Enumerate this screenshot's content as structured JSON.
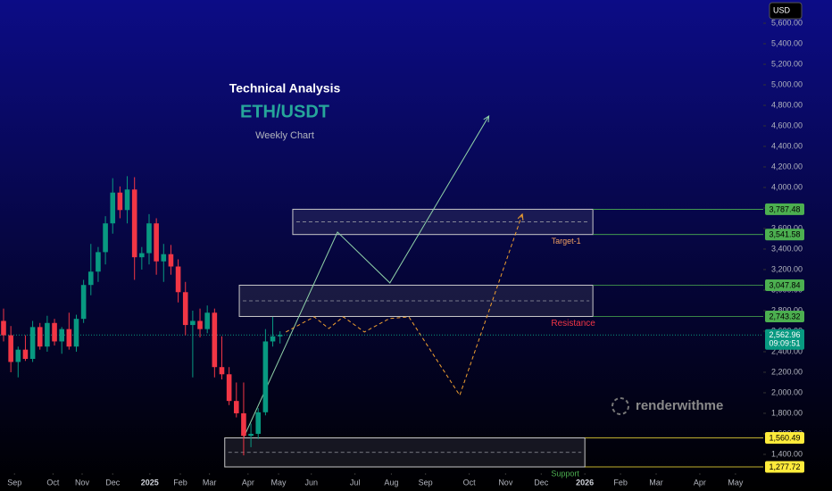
{
  "chart_data": {
    "type": "candlestick",
    "title": "Technical Analysis",
    "symbol": "ETH/USDT",
    "subtitle": "Weekly Chart",
    "currency": "USD",
    "watermark": "renderwithme",
    "colors": {
      "up": "#089981",
      "down": "#f23645"
    },
    "x": [
      0,
      1,
      2,
      3,
      4,
      5,
      6,
      7,
      8,
      9,
      10,
      11,
      12,
      13,
      14,
      15,
      16,
      17,
      18,
      19,
      20,
      21,
      22,
      23,
      24,
      25,
      26,
      27,
      28,
      29,
      30,
      31,
      32,
      33,
      34,
      35,
      36,
      37,
      38
    ],
    "open": [
      2700,
      2560,
      2300,
      2420,
      2330,
      2640,
      2450,
      2680,
      2500,
      2620,
      2450,
      2720,
      3050,
      3180,
      3370,
      3650,
      3950,
      3780,
      3980,
      3320,
      3360,
      3650,
      3280,
      3350,
      3230,
      2980,
      2660,
      2700,
      2620,
      2780,
      2250,
      2180,
      1920,
      1800,
      1580,
      1600,
      1810,
      2500,
      2550
    ],
    "high": [
      2820,
      2650,
      2450,
      2560,
      2700,
      2680,
      2750,
      2720,
      2640,
      2780,
      2760,
      3100,
      3450,
      3420,
      3720,
      4090,
      4010,
      4110,
      4100,
      3420,
      3740,
      3700,
      3450,
      3440,
      3300,
      3080,
      2800,
      2820,
      2850,
      2820,
      2550,
      2250,
      2100,
      2100,
      1700,
      1850,
      2620,
      2740,
      2600
    ],
    "low": [
      2500,
      2200,
      2150,
      2310,
      2300,
      2420,
      2400,
      2460,
      2380,
      2420,
      2400,
      2680,
      2950,
      3080,
      3250,
      3550,
      3700,
      3650,
      3100,
      3200,
      3250,
      3150,
      3080,
      3150,
      2880,
      2560,
      2150,
      2540,
      2580,
      2150,
      2130,
      1880,
      1760,
      1390,
      1470,
      1550,
      1780,
      2450,
      2480
    ],
    "close": [
      2560,
      2300,
      2420,
      2330,
      2640,
      2450,
      2680,
      2500,
      2620,
      2450,
      2720,
      3050,
      3180,
      3370,
      3650,
      3950,
      3780,
      3980,
      3320,
      3360,
      3650,
      3280,
      3350,
      3230,
      2980,
      2660,
      2700,
      2620,
      2780,
      2250,
      2180,
      1920,
      1800,
      1580,
      1600,
      1810,
      2500,
      2550,
      2563
    ],
    "xlim": [
      -0.49,
      104.42
    ],
    "xticks": [
      {
        "value": 1.5,
        "label": "Sep"
      },
      {
        "value": 6.8,
        "label": "Oct"
      },
      {
        "value": 10.8,
        "label": "Nov"
      },
      {
        "value": 15,
        "label": "Dec"
      },
      {
        "value": 20.1,
        "label": "2025"
      },
      {
        "value": 24.3,
        "label": "Feb"
      },
      {
        "value": 28.3,
        "label": "Mar"
      },
      {
        "value": 33.6,
        "label": "Apr"
      },
      {
        "value": 37.8,
        "label": "May"
      },
      {
        "value": 42.3,
        "label": "Jun"
      },
      {
        "value": 48.3,
        "label": "Jul"
      },
      {
        "value": 53.3,
        "label": "Aug"
      },
      {
        "value": 58,
        "label": "Sep"
      },
      {
        "value": 64,
        "label": "Oct"
      },
      {
        "value": 69,
        "label": "Nov"
      },
      {
        "value": 73.9,
        "label": "Dec"
      },
      {
        "value": 79.9,
        "label": "2026"
      },
      {
        "value": 84.8,
        "label": "Feb"
      },
      {
        "value": 89.7,
        "label": "Mar"
      },
      {
        "value": 95.7,
        "label": "Apr"
      },
      {
        "value": 100.6,
        "label": "May"
      }
    ],
    "ylim": [
      1217,
      5826
    ],
    "yticks": [
      {
        "value": 1400,
        "label": "1,400.00"
      },
      {
        "value": 1600,
        "label": "1,600.00"
      },
      {
        "value": 1800,
        "label": "1,800.00"
      },
      {
        "value": 2000,
        "label": "2,000.00"
      },
      {
        "value": 2200,
        "label": "2,200.00"
      },
      {
        "value": 2400,
        "label": "2,400.00"
      },
      {
        "value": 2600,
        "label": "2,600.00"
      },
      {
        "value": 2800,
        "label": "2,800.00"
      },
      {
        "value": 3000,
        "label": "3,000.00"
      },
      {
        "value": 3200,
        "label": "3,200.00"
      },
      {
        "value": 3400,
        "label": "3,400.00"
      },
      {
        "value": 3600,
        "label": "3,600.00"
      },
      {
        "value": 3800,
        "label": "3,800.00"
      },
      {
        "value": 4000,
        "label": "4,000.00"
      },
      {
        "value": 4200,
        "label": "4,200.00"
      },
      {
        "value": 4400,
        "label": "4,400.00"
      },
      {
        "value": 4600,
        "label": "4,600.00"
      },
      {
        "value": 4800,
        "label": "4,800.00"
      },
      {
        "value": 5000,
        "label": "5,000.00"
      },
      {
        "value": 5200,
        "label": "5,200.00"
      },
      {
        "value": 5400,
        "label": "5,400.00"
      },
      {
        "value": 5600,
        "label": "5,600.00"
      }
    ],
    "last_price": {
      "value": 2562.96,
      "label": "2,562.96"
    },
    "countdown": "09:09:51",
    "zones": [
      {
        "name": "Target-1",
        "name_color": "#f0a060",
        "tag_color": "#4caf50",
        "top": {
          "value": 3787.48,
          "label": "3,787.48"
        },
        "bottom": {
          "value": 3541.58,
          "label": "3,541.58"
        },
        "x": [
          39.75,
          81
        ]
      },
      {
        "name": "Resistance",
        "name_color": "#f23645",
        "tag_color": "#4caf50",
        "top": {
          "value": 3047.84,
          "label": "3,047.84"
        },
        "bottom": {
          "value": 2743.32,
          "label": "2,743.32"
        },
        "x": [
          32.4,
          81
        ]
      },
      {
        "name": "Support",
        "name_color": "#4caf50",
        "tag_color": "#ffeb3b",
        "top": {
          "value": 1560.49,
          "label": "1,560.49"
        },
        "bottom": {
          "value": 1277.72,
          "label": "1,277.72"
        },
        "x": [
          30.4,
          79.9
        ]
      }
    ],
    "projections": [
      {
        "color": "#8fd1a8",
        "style": "solid",
        "x": [
          33.0,
          45.9,
          53.1,
          66.7
        ],
        "y": [
          1565,
          3565,
          3070,
          4696
        ]
      },
      {
        "color": "#f0a030",
        "style": "dashed",
        "x": [
          38.8,
          42.7,
          44.7,
          46.7,
          49.6,
          53.0,
          55.7,
          62.7,
          71.3
        ],
        "y": [
          2592,
          2740,
          2626,
          2740,
          2592,
          2722,
          2740,
          1975,
          3740
        ]
      }
    ]
  }
}
